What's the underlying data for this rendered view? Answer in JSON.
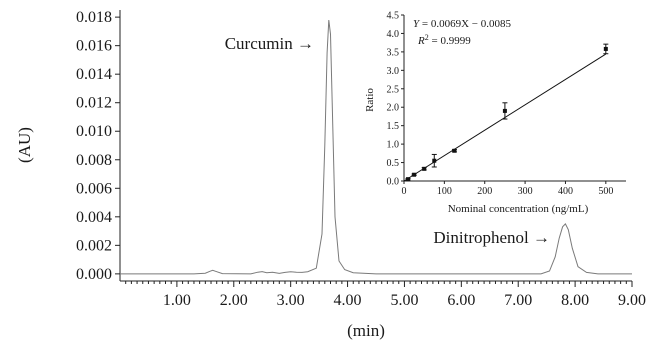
{
  "chart_data": [
    {
      "type": "line",
      "title": "",
      "xlabel": "(min)",
      "ylabel": "(AU)",
      "xlim": [
        0.0,
        9.0
      ],
      "ylim": [
        -0.0005,
        0.0185
      ],
      "xticks": [
        "1.00",
        "2.00",
        "3.00",
        "4.00",
        "5.00",
        "6.00",
        "7.00",
        "8.00",
        "9.00"
      ],
      "xtick_values": [
        1,
        2,
        3,
        4,
        5,
        6,
        7,
        8,
        9
      ],
      "yticks": [
        "0.000",
        "0.002",
        "0.004",
        "0.006",
        "0.008",
        "0.010",
        "0.012",
        "0.014",
        "0.016",
        "0.018"
      ],
      "ytick_values": [
        0,
        0.002,
        0.004,
        0.006,
        0.008,
        0.01,
        0.012,
        0.014,
        0.016,
        0.018
      ],
      "grid": false,
      "series": [
        {
          "points": [
            [
              0.0,
              0.0
            ],
            [
              1.3,
              0.0
            ],
            [
              1.5,
              5e-05
            ],
            [
              1.58,
              0.00018
            ],
            [
              1.63,
              0.00025
            ],
            [
              1.68,
              0.00018
            ],
            [
              1.8,
              2e-05
            ],
            [
              2.3,
              0.0
            ],
            [
              2.42,
              0.00012
            ],
            [
              2.5,
              0.00016
            ],
            [
              2.58,
              8e-05
            ],
            [
              2.68,
              0.00012
            ],
            [
              2.8,
              3e-05
            ],
            [
              2.9,
              0.0001
            ],
            [
              3.0,
              0.00015
            ],
            [
              3.1,
              0.00012
            ],
            [
              3.2,
              0.0001
            ],
            [
              3.3,
              0.00015
            ],
            [
              3.45,
              0.0004
            ],
            [
              3.55,
              0.0028
            ],
            [
              3.6,
              0.009
            ],
            [
              3.64,
              0.0155
            ],
            [
              3.67,
              0.0178
            ],
            [
              3.7,
              0.0168
            ],
            [
              3.73,
              0.012
            ],
            [
              3.78,
              0.004
            ],
            [
              3.85,
              0.0009
            ],
            [
              3.95,
              0.0003
            ],
            [
              4.1,
              8e-05
            ],
            [
              4.5,
              0.0
            ],
            [
              7.4,
              0.0
            ],
            [
              7.55,
              0.0002
            ],
            [
              7.65,
              0.0012
            ],
            [
              7.72,
              0.0025
            ],
            [
              7.78,
              0.0033
            ],
            [
              7.83,
              0.0035
            ],
            [
              7.88,
              0.0031
            ],
            [
              7.95,
              0.0018
            ],
            [
              8.05,
              0.0005
            ],
            [
              8.2,
              0.0001
            ],
            [
              8.4,
              0.0
            ],
            [
              9.0,
              0.0
            ]
          ]
        }
      ],
      "annotations": [
        {
          "text": "Curcumin →",
          "x": 3.55,
          "y": 0.0162
        },
        {
          "text": "Dinitrophenol →",
          "x": 7.7,
          "y": 0.0026
        }
      ]
    },
    {
      "type": "scatter",
      "title": "",
      "xlabel": "Nominal concentration (ng/mL)",
      "ylabel": "Ratio",
      "xlim": [
        0,
        550
      ],
      "ylim": [
        0.0,
        4.5
      ],
      "xticks": [
        "0",
        "100",
        "200",
        "300",
        "400",
        "500"
      ],
      "xtick_values": [
        0,
        100,
        200,
        300,
        400,
        500
      ],
      "yticks": [
        "0.0",
        "0.5",
        "1.0",
        "1.5",
        "2.0",
        "2.5",
        "3.0",
        "3.5",
        "4.0",
        "4.5"
      ],
      "ytick_values": [
        0,
        0.5,
        1,
        1.5,
        2,
        2.5,
        3,
        3.5,
        4,
        4.5
      ],
      "grid": false,
      "series": [
        {
          "points": [
            {
              "x": 10,
              "y": 0.05,
              "err": 0.02
            },
            {
              "x": 25,
              "y": 0.17,
              "err": 0.02
            },
            {
              "x": 50,
              "y": 0.33,
              "err": 0.03
            },
            {
              "x": 75,
              "y": 0.55,
              "err": 0.17
            },
            {
              "x": 125,
              "y": 0.82,
              "err": 0.03
            },
            {
              "x": 250,
              "y": 1.9,
              "err": 0.22
            },
            {
              "x": 500,
              "y": 3.58,
              "err": 0.13
            }
          ]
        }
      ],
      "fit": {
        "slope": 0.0069,
        "intercept": -0.0085,
        "x_range": [
          0,
          500
        ]
      },
      "equation_text": "= 0.0069X − 0.0085",
      "equation_var": "Y",
      "r2_var": "R",
      "r2_sup": "2",
      "r2_value_text": " = 0.9999"
    }
  ]
}
